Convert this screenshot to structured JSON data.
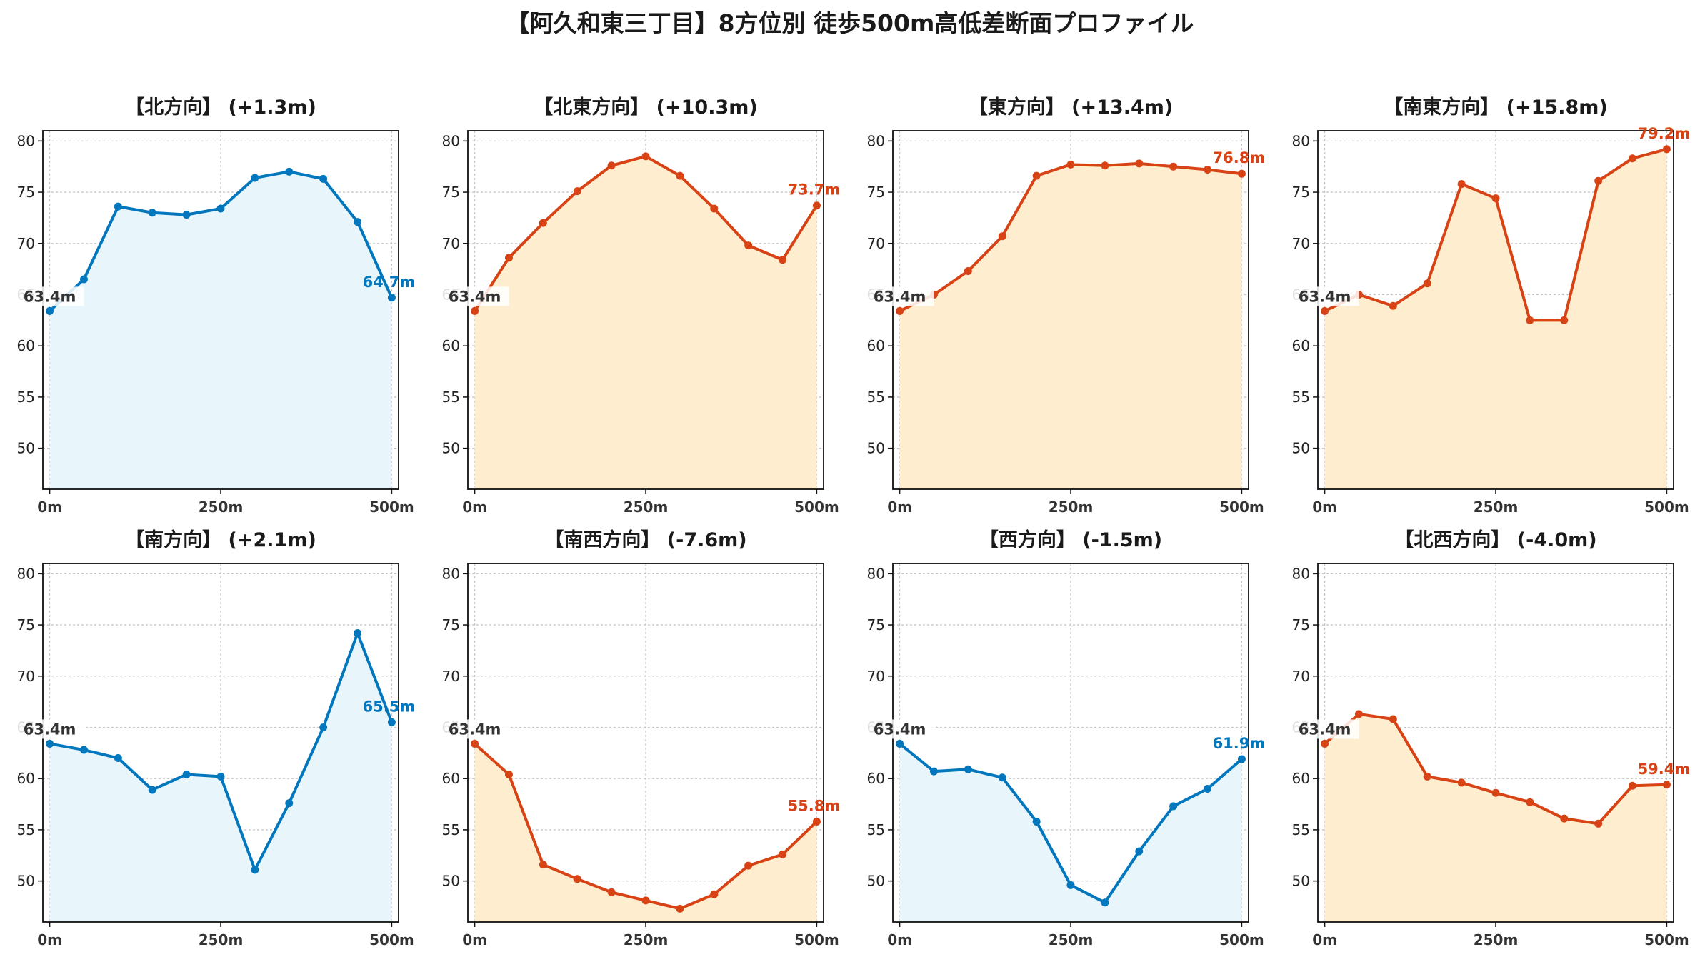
{
  "title": "【阿久和東三丁目】8方位別 徒歩500m高低差断面プロファイル",
  "colors": {
    "up": "#d84315",
    "down": "#0277bd",
    "up_fill": "#ffedd0",
    "down_fill": "#e8f6fc",
    "start_label": "#333333"
  },
  "chart_data": [
    {
      "type": "area",
      "title": "【北方向】 (+1.3m)",
      "x": [
        0,
        50,
        100,
        150,
        200,
        250,
        300,
        350,
        400,
        450,
        500
      ],
      "values": [
        63.4,
        66.5,
        73.6,
        73.0,
        72.8,
        73.4,
        76.4,
        77.0,
        76.3,
        72.1,
        64.7
      ],
      "start_label": "63.4m",
      "end_label": "64.7m",
      "trend": "down",
      "xticks": [
        0,
        250,
        500
      ],
      "xtick_labels": [
        "0m",
        "250m",
        "500m"
      ],
      "yticks": [
        50,
        55,
        60,
        65,
        70,
        75,
        80
      ],
      "xlim": [
        -10,
        510
      ],
      "ylim": [
        46,
        81
      ],
      "grid": true
    },
    {
      "type": "area",
      "title": "【北東方向】 (+10.3m)",
      "x": [
        0,
        50,
        100,
        150,
        200,
        250,
        300,
        350,
        400,
        450,
        500
      ],
      "values": [
        63.4,
        68.6,
        72.0,
        75.1,
        77.6,
        78.5,
        76.6,
        73.4,
        69.8,
        68.4,
        73.7
      ],
      "start_label": "63.4m",
      "end_label": "73.7m",
      "trend": "up",
      "xticks": [
        0,
        250,
        500
      ],
      "xtick_labels": [
        "0m",
        "250m",
        "500m"
      ],
      "yticks": [
        50,
        55,
        60,
        65,
        70,
        75,
        80
      ],
      "xlim": [
        -10,
        510
      ],
      "ylim": [
        46,
        81
      ],
      "grid": true
    },
    {
      "type": "area",
      "title": "【東方向】 (+13.4m)",
      "x": [
        0,
        50,
        100,
        150,
        200,
        250,
        300,
        350,
        400,
        450,
        500
      ],
      "values": [
        63.4,
        65.0,
        67.3,
        70.7,
        76.6,
        77.7,
        77.6,
        77.8,
        77.5,
        77.2,
        76.8
      ],
      "start_label": "63.4m",
      "end_label": "76.8m",
      "trend": "up",
      "xticks": [
        0,
        250,
        500
      ],
      "xtick_labels": [
        "0m",
        "250m",
        "500m"
      ],
      "yticks": [
        50,
        55,
        60,
        65,
        70,
        75,
        80
      ],
      "xlim": [
        -10,
        510
      ],
      "ylim": [
        46,
        81
      ],
      "grid": true
    },
    {
      "type": "area",
      "title": "【南東方向】 (+15.8m)",
      "x": [
        0,
        50,
        100,
        150,
        200,
        250,
        300,
        350,
        400,
        450,
        500
      ],
      "values": [
        63.4,
        65.0,
        63.9,
        66.1,
        75.8,
        74.4,
        62.5,
        62.5,
        76.1,
        78.3,
        79.2
      ],
      "start_label": "63.4m",
      "end_label": "79.2m",
      "trend": "up",
      "xticks": [
        0,
        250,
        500
      ],
      "xtick_labels": [
        "0m",
        "250m",
        "500m"
      ],
      "yticks": [
        50,
        55,
        60,
        65,
        70,
        75,
        80
      ],
      "xlim": [
        -10,
        510
      ],
      "ylim": [
        46,
        81
      ],
      "grid": true
    },
    {
      "type": "area",
      "title": "【南方向】 (+2.1m)",
      "x": [
        0,
        50,
        100,
        150,
        200,
        250,
        300,
        350,
        400,
        450,
        500
      ],
      "values": [
        63.4,
        62.8,
        62.0,
        58.9,
        60.4,
        60.2,
        51.1,
        57.6,
        65.0,
        74.2,
        65.5
      ],
      "start_label": "63.4m",
      "end_label": "65.5m",
      "trend": "down",
      "xticks": [
        0,
        250,
        500
      ],
      "xtick_labels": [
        "0m",
        "250m",
        "500m"
      ],
      "yticks": [
        50,
        55,
        60,
        65,
        70,
        75,
        80
      ],
      "xlim": [
        -10,
        510
      ],
      "ylim": [
        46,
        81
      ],
      "grid": true
    },
    {
      "type": "area",
      "title": "【南西方向】 (-7.6m)",
      "x": [
        0,
        50,
        100,
        150,
        200,
        250,
        300,
        350,
        400,
        450,
        500
      ],
      "values": [
        63.4,
        60.4,
        51.6,
        50.2,
        48.9,
        48.1,
        47.3,
        48.7,
        51.5,
        52.6,
        55.8
      ],
      "start_label": "63.4m",
      "end_label": "55.8m",
      "trend": "up",
      "xticks": [
        0,
        250,
        500
      ],
      "xtick_labels": [
        "0m",
        "250m",
        "500m"
      ],
      "yticks": [
        50,
        55,
        60,
        65,
        70,
        75,
        80
      ],
      "xlim": [
        -10,
        510
      ],
      "ylim": [
        46,
        81
      ],
      "grid": true
    },
    {
      "type": "area",
      "title": "【西方向】 (-1.5m)",
      "x": [
        0,
        50,
        100,
        150,
        200,
        250,
        300,
        350,
        400,
        450,
        500
      ],
      "values": [
        63.4,
        60.7,
        60.9,
        60.1,
        55.8,
        49.6,
        47.9,
        52.9,
        57.3,
        59.0,
        61.9
      ],
      "start_label": "63.4m",
      "end_label": "61.9m",
      "trend": "down",
      "xticks": [
        0,
        250,
        500
      ],
      "xtick_labels": [
        "0m",
        "250m",
        "500m"
      ],
      "yticks": [
        50,
        55,
        60,
        65,
        70,
        75,
        80
      ],
      "xlim": [
        -10,
        510
      ],
      "ylim": [
        46,
        81
      ],
      "grid": true
    },
    {
      "type": "area",
      "title": "【北西方向】 (-4.0m)",
      "x": [
        0,
        50,
        100,
        150,
        200,
        250,
        300,
        350,
        400,
        450,
        500
      ],
      "values": [
        63.4,
        66.3,
        65.8,
        60.2,
        59.6,
        58.6,
        57.7,
        56.1,
        55.6,
        59.3,
        59.4
      ],
      "start_label": "63.4m",
      "end_label": "59.4m",
      "trend": "up",
      "xticks": [
        0,
        250,
        500
      ],
      "xtick_labels": [
        "0m",
        "250m",
        "500m"
      ],
      "yticks": [
        50,
        55,
        60,
        65,
        70,
        75,
        80
      ],
      "xlim": [
        -10,
        510
      ],
      "ylim": [
        46,
        81
      ],
      "grid": true
    }
  ]
}
